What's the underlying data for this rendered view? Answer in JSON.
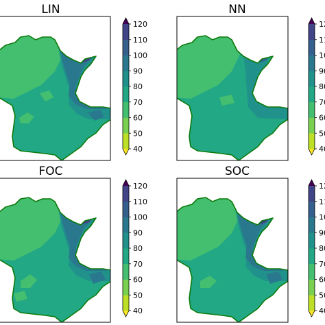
{
  "chart_data": {
    "type": "heatmap",
    "layout": "2x2 grid of filled-contour maps, each with its own colorbar",
    "colormap": "viridis (reversed: yellow = low, dark purple = high)",
    "colorbar": {
      "levels": [
        40,
        50,
        60,
        70,
        80,
        90,
        100,
        110,
        120
      ],
      "extend": "both",
      "ticks": [
        "40",
        "50",
        "60",
        "70",
        "80",
        "90",
        "100",
        "110",
        "120"
      ],
      "colors": [
        "#fde725",
        "#bddf26",
        "#7ad151",
        "#44bf70",
        "#22a884",
        "#21918c",
        "#2a788e",
        "#355f8d",
        "#414487",
        "#482475",
        "#440154"
      ]
    },
    "panels": [
      {
        "title": "LIN",
        "regions": [
          {
            "zone": "north-west lobe",
            "value_range": [
              60,
              70
            ]
          },
          {
            "zone": "central and southern body",
            "value_range": [
              70,
              80
            ]
          },
          {
            "zone": "north-east border",
            "value_range": [
              80,
              100
            ]
          },
          {
            "zone": "north-east corner",
            "value_range": [
              110,
              120
            ]
          }
        ]
      },
      {
        "title": "NN",
        "regions": [
          {
            "zone": "north-west lobe",
            "value_range": [
              60,
              70
            ]
          },
          {
            "zone": "central and southern body",
            "value_range": [
              70,
              80
            ]
          },
          {
            "zone": "eastern band",
            "value_range": [
              80,
              90
            ]
          },
          {
            "zone": "north-east corner",
            "value_range": [
              100,
              120
            ]
          }
        ]
      },
      {
        "title": "FOC",
        "regions": [
          {
            "zone": "north-west lobe",
            "value_range": [
              60,
              70
            ]
          },
          {
            "zone": "central and southern body",
            "value_range": [
              70,
              80
            ]
          },
          {
            "zone": "north-east border",
            "value_range": [
              80,
              100
            ]
          },
          {
            "zone": "north-east corner",
            "value_range": [
              110,
              120
            ]
          }
        ]
      },
      {
        "title": "SOC",
        "regions": [
          {
            "zone": "north-west lobe",
            "value_range": [
              60,
              70
            ]
          },
          {
            "zone": "central and southern body",
            "value_range": [
              70,
              80
            ]
          },
          {
            "zone": "north-east border",
            "value_range": [
              80,
              100
            ]
          },
          {
            "zone": "north-east corner",
            "value_range": [
              110,
              120
            ]
          }
        ]
      }
    ]
  },
  "colors": {
    "boundary": "#0b7a0b",
    "frame": "#000000"
  }
}
